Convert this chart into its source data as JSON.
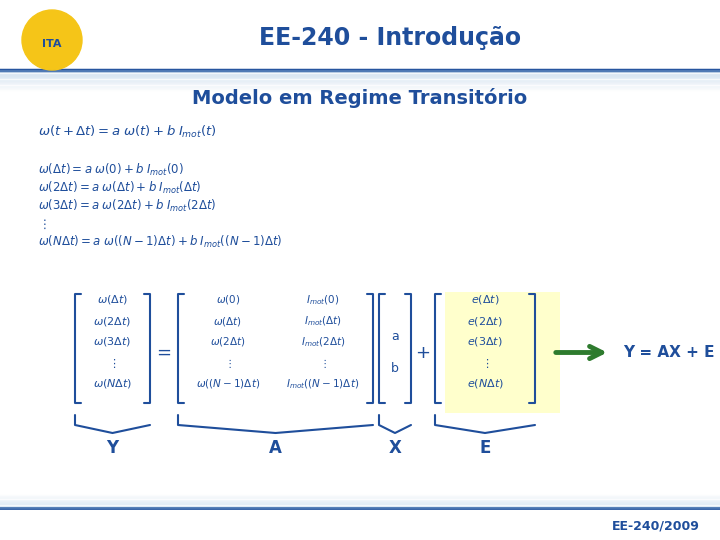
{
  "title": "EE-240 - Introdução",
  "subtitle": "Modelo em Regime Transitório",
  "title_color": "#1F4E9B",
  "subtitle_color": "#1F4E9B",
  "bg_color": "#FFFFFF",
  "footer_text": "EE-240/2009",
  "footer_color": "#1F4E9B",
  "equation_color": "#1F4E9B",
  "arrow_color": "#2E7B2E",
  "highlight_color": "#FFFFCC",
  "label_Y": "Y",
  "label_A": "A",
  "label_X": "X",
  "label_E": "E",
  "eq_result": "Y = AX + E"
}
